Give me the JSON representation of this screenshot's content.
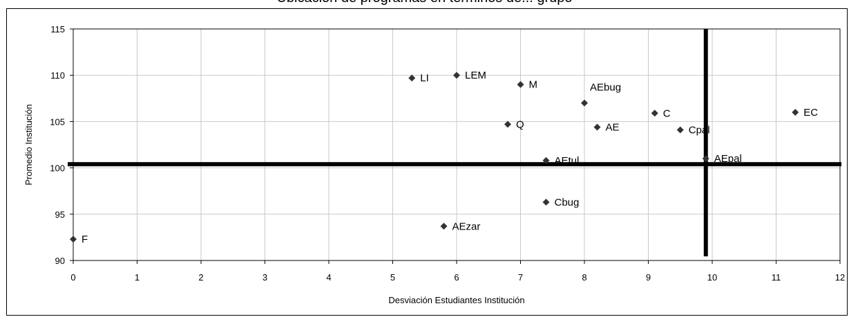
{
  "chart_data": {
    "type": "scatter",
    "title": "Ubicación de programas en términos de... grupo",
    "xlabel": "Desviación Estudiantes Institución",
    "ylabel": "Promedio Institución",
    "xlim": [
      0,
      12
    ],
    "ylim": [
      90,
      115
    ],
    "xticks": [
      "0",
      "1",
      "2",
      "3",
      "4",
      "5",
      "6",
      "7",
      "8",
      "9",
      "10",
      "11",
      "12"
    ],
    "yticks": [
      "90",
      "95",
      "100",
      "105",
      "110",
      "115"
    ],
    "grid": true,
    "marker_color": "#333333",
    "points": [
      {
        "label": "F",
        "x": 0.0,
        "y": 92.3
      },
      {
        "label": "LI",
        "x": 5.3,
        "y": 109.7
      },
      {
        "label": "LEM",
        "x": 6.0,
        "y": 110.0
      },
      {
        "label": "M",
        "x": 7.0,
        "y": 109.0
      },
      {
        "label": "AEbug",
        "x": 8.0,
        "y": 107.0
      },
      {
        "label": "Q",
        "x": 6.8,
        "y": 104.7
      },
      {
        "label": "AE",
        "x": 8.2,
        "y": 104.4
      },
      {
        "label": "C",
        "x": 9.1,
        "y": 105.9
      },
      {
        "label": "Cpal",
        "x": 9.5,
        "y": 104.1
      },
      {
        "label": "EC",
        "x": 11.3,
        "y": 106.0
      },
      {
        "label": "AEtul",
        "x": 7.4,
        "y": 100.8
      },
      {
        "label": "AEpal",
        "x": 9.9,
        "y": 101.0
      },
      {
        "label": "Cbug",
        "x": 7.4,
        "y": 96.3
      },
      {
        "label": "AEzar",
        "x": 5.8,
        "y": 93.7
      }
    ],
    "reference_lines": [
      {
        "orientation": "horizontal",
        "y": 100.4
      },
      {
        "orientation": "vertical",
        "x": 9.9
      }
    ]
  }
}
